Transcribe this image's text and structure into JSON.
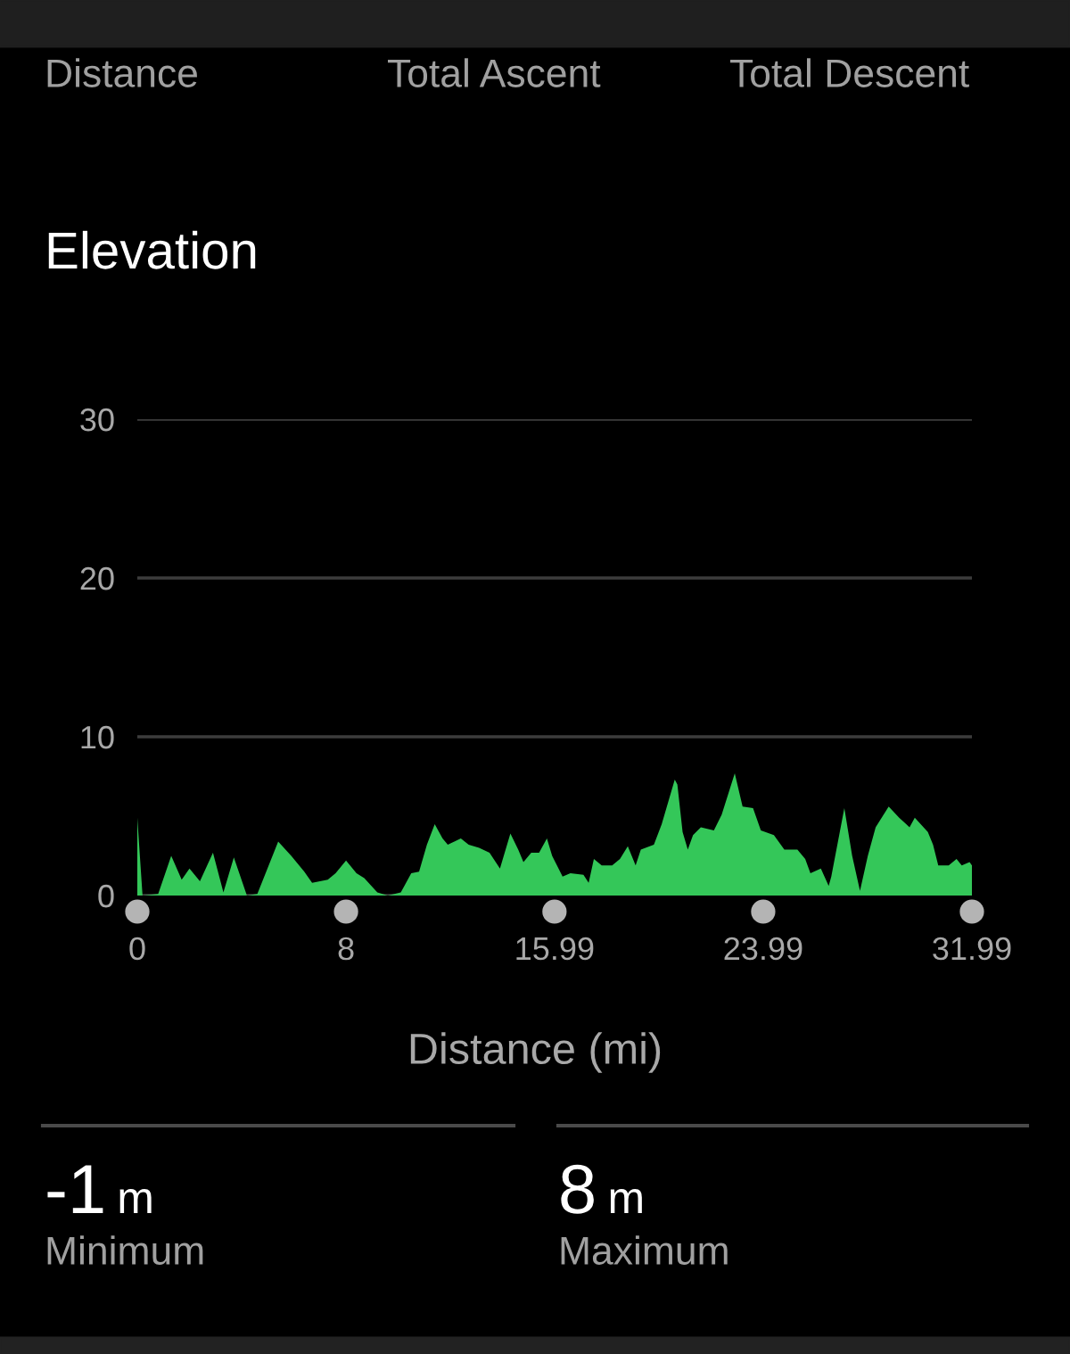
{
  "chart_data": {
    "type": "area",
    "title": "Elevation",
    "xlabel": "Distance (mi)",
    "annotations": [
      "Distance",
      "Total Ascent",
      "Total Descent",
      "-1",
      "m",
      "Minimum",
      "8",
      "m",
      "Maximum"
    ],
    "x": [
      0,
      0.2,
      0.8,
      1.3,
      1.7,
      2.0,
      2.4,
      2.9,
      3.3,
      3.7,
      4.2,
      4.6,
      5.4,
      5.9,
      6.4,
      6.7,
      7.3,
      7.6,
      8.0,
      8.4,
      8.7,
      9.2,
      9.6,
      10.1,
      10.5,
      10.8,
      11.1,
      11.4,
      11.7,
      11.9,
      12.4,
      12.7,
      13.1,
      13.5,
      13.9,
      14.3,
      14.6,
      14.8,
      15.1,
      15.4,
      15.7,
      15.9,
      16.3,
      16.6,
      17.1,
      17.3,
      17.5,
      17.8,
      18.2,
      18.5,
      18.8,
      19.1,
      19.3,
      19.8,
      20.1,
      20.6,
      20.7,
      20.9,
      21.1,
      21.3,
      21.6,
      22.1,
      22.4,
      22.9,
      23.2,
      23.6,
      23.9,
      24.4,
      24.8,
      25.3,
      25.6,
      25.8,
      26.2,
      26.5,
      26.6,
      27.1,
      27.4,
      27.7,
      28.0,
      28.3,
      28.8,
      29.2,
      29.6,
      29.8,
      30.3,
      30.5,
      30.7,
      31.1,
      31.4,
      31.6,
      31.9,
      31.99
    ],
    "series": [
      {
        "color": "#34c759",
        "values": [
          4.9,
          0,
          0.1,
          2.5,
          1.0,
          1.7,
          0.9,
          2.7,
          0.2,
          2.4,
          0,
          0.1,
          3.4,
          2.5,
          1.5,
          0.8,
          1.0,
          1.4,
          2.2,
          1.4,
          1.1,
          0.2,
          0,
          0.2,
          1.4,
          1.5,
          3.2,
          4.5,
          3.6,
          3.2,
          3.6,
          3.2,
          3.0,
          2.7,
          1.7,
          3.9,
          2.9,
          2.1,
          2.7,
          2.7,
          3.6,
          2.5,
          1.2,
          1.4,
          1.3,
          0.8,
          2.3,
          1.9,
          1.9,
          2.3,
          3.1,
          1.9,
          2.9,
          3.2,
          4.5,
          7.3,
          7.0,
          4.0,
          2.9,
          3.8,
          4.3,
          4.1,
          5.1,
          7.7,
          5.6,
          5.5,
          4.1,
          3.8,
          2.9,
          2.9,
          2.3,
          1.4,
          1.7,
          0.6,
          1.2,
          5.5,
          2.5,
          0.3,
          2.5,
          4.3,
          5.6,
          4.9,
          4.3,
          4.9,
          4.0,
          3.2,
          1.9,
          1.9,
          2.3,
          1.9,
          2.1,
          1.9
        ]
      }
    ],
    "xlim": [
      0,
      31.99
    ],
    "xticks": [
      0,
      8,
      15.99,
      23.99,
      31.99
    ],
    "ylim": [
      0,
      30
    ],
    "yticks": [
      0,
      10,
      20,
      30
    ],
    "grid": "y"
  }
}
